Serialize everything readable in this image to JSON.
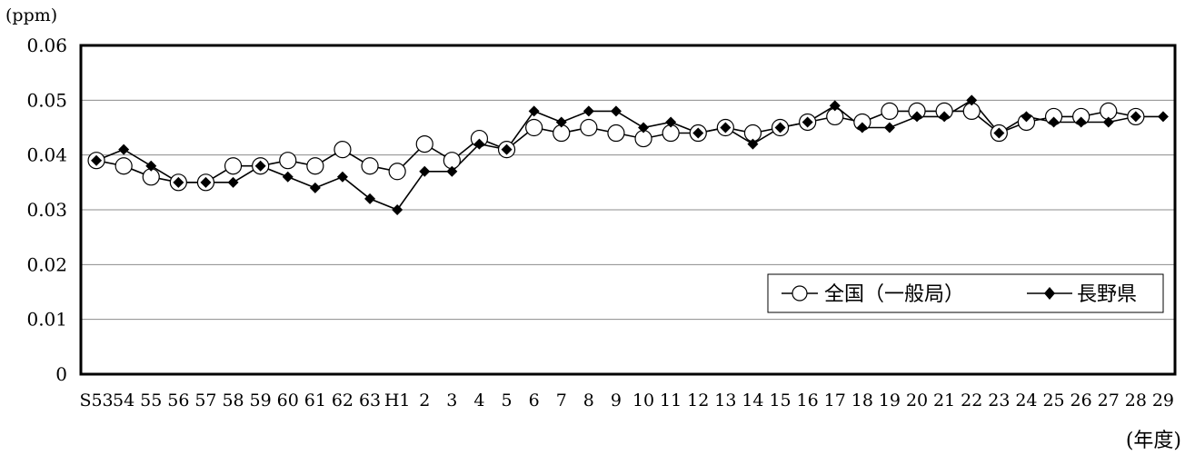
{
  "chart_data": {
    "type": "line",
    "y_unit": "(ppm)",
    "x_unit": "(年度)",
    "ylim": [
      0,
      0.06
    ],
    "yticks": [
      "0",
      "0.01",
      "0.02",
      "0.03",
      "0.04",
      "0.05",
      "0.06"
    ],
    "grid": true,
    "legend_position": "bottom-right",
    "categories": [
      "S53",
      "54",
      "55",
      "56",
      "57",
      "58",
      "59",
      "60",
      "61",
      "62",
      "63",
      "H1",
      "2",
      "3",
      "4",
      "5",
      "6",
      "7",
      "8",
      "9",
      "10",
      "11",
      "12",
      "13",
      "14",
      "15",
      "16",
      "17",
      "18",
      "19",
      "20",
      "21",
      "22",
      "23",
      "24",
      "25",
      "26",
      "27",
      "28",
      "29"
    ],
    "series": [
      {
        "name": "全国（一般局）",
        "marker": "open-circle",
        "color": "#000000",
        "values": [
          0.039,
          0.038,
          0.036,
          0.035,
          0.035,
          0.038,
          0.038,
          0.039,
          0.038,
          0.041,
          0.038,
          0.037,
          0.042,
          0.039,
          0.043,
          0.041,
          0.045,
          0.044,
          0.045,
          0.044,
          0.043,
          0.044,
          0.044,
          0.045,
          0.044,
          0.045,
          0.046,
          0.047,
          0.046,
          0.048,
          0.048,
          0.048,
          0.048,
          0.044,
          0.046,
          0.047,
          0.047,
          0.048,
          0.047,
          null
        ]
      },
      {
        "name": "長野県",
        "marker": "filled-diamond",
        "color": "#000000",
        "values": [
          0.039,
          0.041,
          0.038,
          0.035,
          0.035,
          0.035,
          0.038,
          0.036,
          0.034,
          0.036,
          0.032,
          0.03,
          0.037,
          0.037,
          0.042,
          0.041,
          0.048,
          0.046,
          0.048,
          0.048,
          0.045,
          0.046,
          0.044,
          0.045,
          0.042,
          0.045,
          0.046,
          0.049,
          0.045,
          0.045,
          0.047,
          0.047,
          0.05,
          0.044,
          0.047,
          0.046,
          0.046,
          0.046,
          0.047,
          0.047
        ]
      }
    ]
  }
}
